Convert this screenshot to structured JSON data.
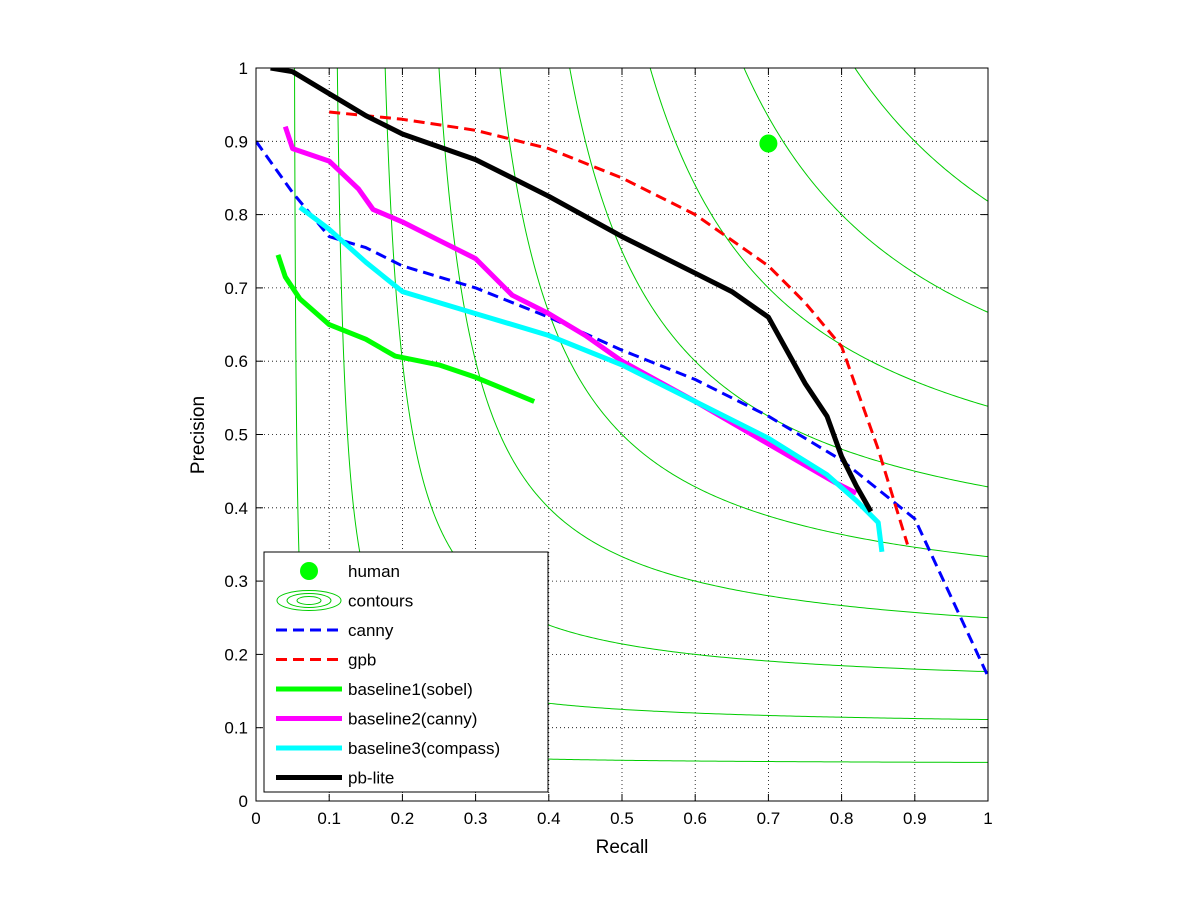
{
  "chart_data": {
    "type": "line",
    "xlabel": "Recall",
    "ylabel": "Precision",
    "xlim": [
      0,
      1
    ],
    "ylim": [
      0,
      1
    ],
    "grid": true,
    "grid_style": "dotted",
    "xticks": [
      "0",
      "0.1",
      "0.2",
      "0.3",
      "0.4",
      "0.5",
      "0.6",
      "0.7",
      "0.8",
      "0.9",
      "1"
    ],
    "yticks": [
      "0",
      "0.1",
      "0.2",
      "0.3",
      "0.4",
      "0.5",
      "0.6",
      "0.7",
      "0.8",
      "0.9",
      "1"
    ],
    "legend_position": "bottom-left",
    "iso_f_contours": {
      "color": "#00cc00",
      "f_values": [
        0.1,
        0.2,
        0.3,
        0.4,
        0.5,
        0.6,
        0.7,
        0.8,
        0.9
      ]
    },
    "series": [
      {
        "name": "human",
        "kind": "marker",
        "color": "#00ff00",
        "x": [
          0.7
        ],
        "y": [
          0.897
        ]
      },
      {
        "name": "contours",
        "kind": "contour",
        "color": "#00cc00"
      },
      {
        "name": "canny",
        "kind": "line",
        "style": "dashed",
        "color": "#0000ff",
        "x": [
          0.0,
          0.05,
          0.1,
          0.15,
          0.2,
          0.3,
          0.4,
          0.5,
          0.6,
          0.7,
          0.8,
          0.9,
          1.0
        ],
        "y": [
          0.9,
          0.83,
          0.77,
          0.755,
          0.73,
          0.7,
          0.66,
          0.615,
          0.575,
          0.525,
          0.465,
          0.385,
          0.17
        ]
      },
      {
        "name": "gpb",
        "kind": "line",
        "style": "dashed",
        "color": "#ff0000",
        "x": [
          0.1,
          0.2,
          0.3,
          0.4,
          0.5,
          0.6,
          0.7,
          0.75,
          0.8,
          0.85,
          0.89
        ],
        "y": [
          0.94,
          0.93,
          0.915,
          0.89,
          0.85,
          0.8,
          0.73,
          0.68,
          0.62,
          0.48,
          0.35
        ]
      },
      {
        "name": "baseline1(sobel)",
        "kind": "line",
        "style": "solid",
        "color": "#00ff00",
        "x": [
          0.03,
          0.04,
          0.06,
          0.1,
          0.15,
          0.19,
          0.25,
          0.3,
          0.38
        ],
        "y": [
          0.745,
          0.715,
          0.685,
          0.65,
          0.63,
          0.607,
          0.595,
          0.578,
          0.545
        ]
      },
      {
        "name": "baseline2(canny)",
        "kind": "line",
        "style": "solid",
        "color": "#ff00ff",
        "x": [
          0.04,
          0.05,
          0.1,
          0.14,
          0.16,
          0.2,
          0.25,
          0.3,
          0.35,
          0.4,
          0.45,
          0.5,
          0.6,
          0.7,
          0.79,
          0.82
        ],
        "y": [
          0.92,
          0.89,
          0.873,
          0.835,
          0.807,
          0.79,
          0.765,
          0.74,
          0.69,
          0.665,
          0.635,
          0.6,
          0.545,
          0.487,
          0.435,
          0.42
        ]
      },
      {
        "name": "baseline3(compass)",
        "kind": "line",
        "style": "solid",
        "color": "#00ffff",
        "x": [
          0.06,
          0.1,
          0.15,
          0.2,
          0.3,
          0.4,
          0.5,
          0.6,
          0.7,
          0.78,
          0.82,
          0.85,
          0.855
        ],
        "y": [
          0.81,
          0.78,
          0.735,
          0.695,
          0.665,
          0.635,
          0.595,
          0.545,
          0.495,
          0.445,
          0.41,
          0.38,
          0.34
        ]
      },
      {
        "name": "pb-lite",
        "kind": "line",
        "style": "solid",
        "color": "#000000",
        "x": [
          0.02,
          0.05,
          0.1,
          0.15,
          0.2,
          0.3,
          0.4,
          0.5,
          0.55,
          0.6,
          0.65,
          0.7,
          0.75,
          0.78,
          0.8,
          0.82,
          0.84
        ],
        "y": [
          1.0,
          0.995,
          0.965,
          0.935,
          0.91,
          0.875,
          0.825,
          0.77,
          0.745,
          0.72,
          0.695,
          0.66,
          0.57,
          0.525,
          0.47,
          0.43,
          0.395
        ]
      }
    ]
  }
}
